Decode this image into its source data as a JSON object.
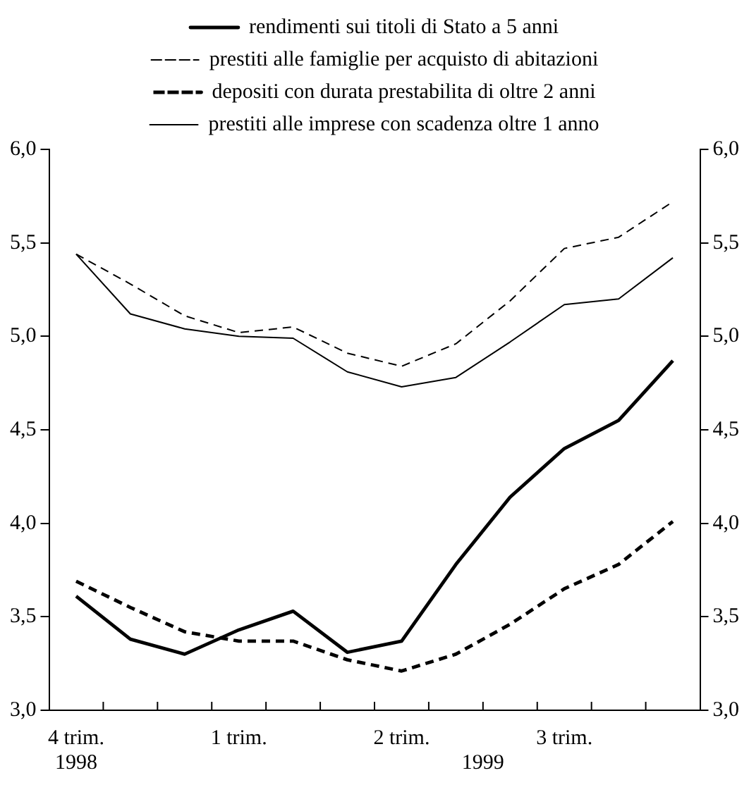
{
  "chart_data": {
    "type": "line",
    "categories": [
      "4 trim.",
      null,
      null,
      "1 trim.",
      null,
      null,
      "2 trim.",
      null,
      null,
      "3 trim.",
      null,
      null
    ],
    "series": [
      {
        "name": "rendimenti sui titoli di Stato a 5 anni",
        "color": "#000000",
        "line_style": "solid",
        "values": [
          3.61,
          3.38,
          3.3,
          3.43,
          3.53,
          3.31,
          3.37,
          3.78,
          4.14,
          4.4,
          4.55,
          4.87
        ]
      },
      {
        "name": "prestiti alle famiglie per acquisto di abitazioni",
        "color": "#000000",
        "line_style": "dashed",
        "values": [
          5.44,
          5.28,
          5.11,
          5.02,
          5.05,
          4.91,
          4.84,
          4.96,
          5.19,
          5.47,
          5.53,
          5.72
        ]
      },
      {
        "name": "depositi con durata prestabilita di oltre 2 anni",
        "color": "#000000",
        "line_style": "dashed",
        "values": [
          3.69,
          3.55,
          3.42,
          3.37,
          3.37,
          3.27,
          3.21,
          3.3,
          3.46,
          3.65,
          3.78,
          4.01
        ]
      },
      {
        "name": "prestiti alle imprese con scadenza oltre 1 anno",
        "color": "#000000",
        "line_style": "solid",
        "values": [
          5.44,
          5.12,
          5.04,
          5.0,
          4.99,
          4.81,
          4.73,
          4.78,
          4.97,
          5.17,
          5.2,
          5.42
        ]
      }
    ],
    "ylim": [
      3,
      6
    ],
    "yticks": [
      {
        "value": 3,
        "label": "3,0"
      },
      {
        "value": 3.5,
        "label": "3,5"
      },
      {
        "value": 4,
        "label": "4,0"
      },
      {
        "value": 4.5,
        "label": "4,5"
      },
      {
        "value": 5,
        "label": "5,0"
      },
      {
        "value": 5.5,
        "label": "5,5"
      },
      {
        "value": 6,
        "label": "6,0"
      }
    ],
    "y2lim": [
      3,
      6
    ],
    "y2ticks": [
      {
        "value": 3,
        "label": "3,0"
      },
      {
        "value": 3.5,
        "label": "3,5"
      },
      {
        "value": 4,
        "label": "4,0"
      },
      {
        "value": 4.5,
        "label": "4,5"
      },
      {
        "value": 5,
        "label": "5,0"
      },
      {
        "value": 5.5,
        "label": "5,5"
      },
      {
        "value": 6,
        "label": "6,0"
      }
    ],
    "annotations": [
      "1998",
      "1999"
    ],
    "legend": "top",
    "grid": false,
    "marker": "none"
  }
}
